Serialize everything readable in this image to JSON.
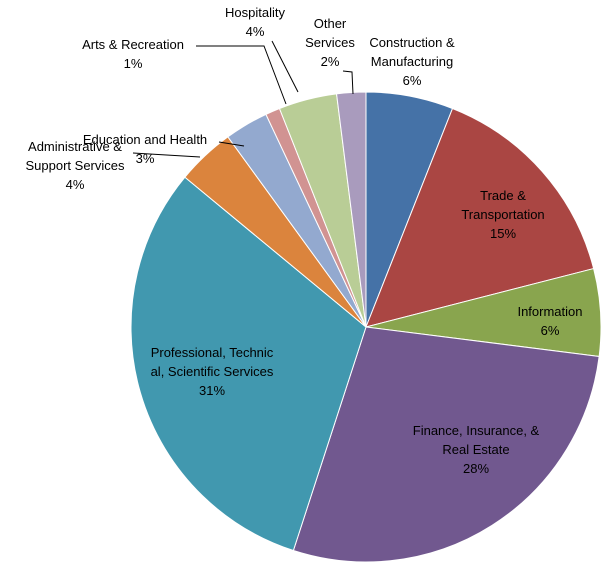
{
  "chart_data": {
    "type": "pie",
    "categories": [
      "Construction &\nManufacturing",
      "Trade &\nTransportation",
      "Information",
      "Finance, Insurance, &\nReal Estate",
      "Professional, Technic\nal, Scientific Services",
      "Administrative &\nSupport Services",
      "Education and Health",
      "Arts & Recreation",
      "Hospitality",
      "Other\nServices"
    ],
    "values": [
      6,
      15,
      6,
      28,
      31,
      4,
      3,
      1,
      4,
      2
    ],
    "value_labels": [
      "6%",
      "15%",
      "6%",
      "28%",
      "31%",
      "4%",
      "3%",
      "1%",
      "4%",
      "2%"
    ],
    "colors": [
      "#4572a7",
      "#aa4643",
      "#89a54e",
      "#71588f",
      "#4198af",
      "#db843d",
      "#93a9cf",
      "#d19392",
      "#b9cd96",
      "#a99bbd"
    ]
  }
}
